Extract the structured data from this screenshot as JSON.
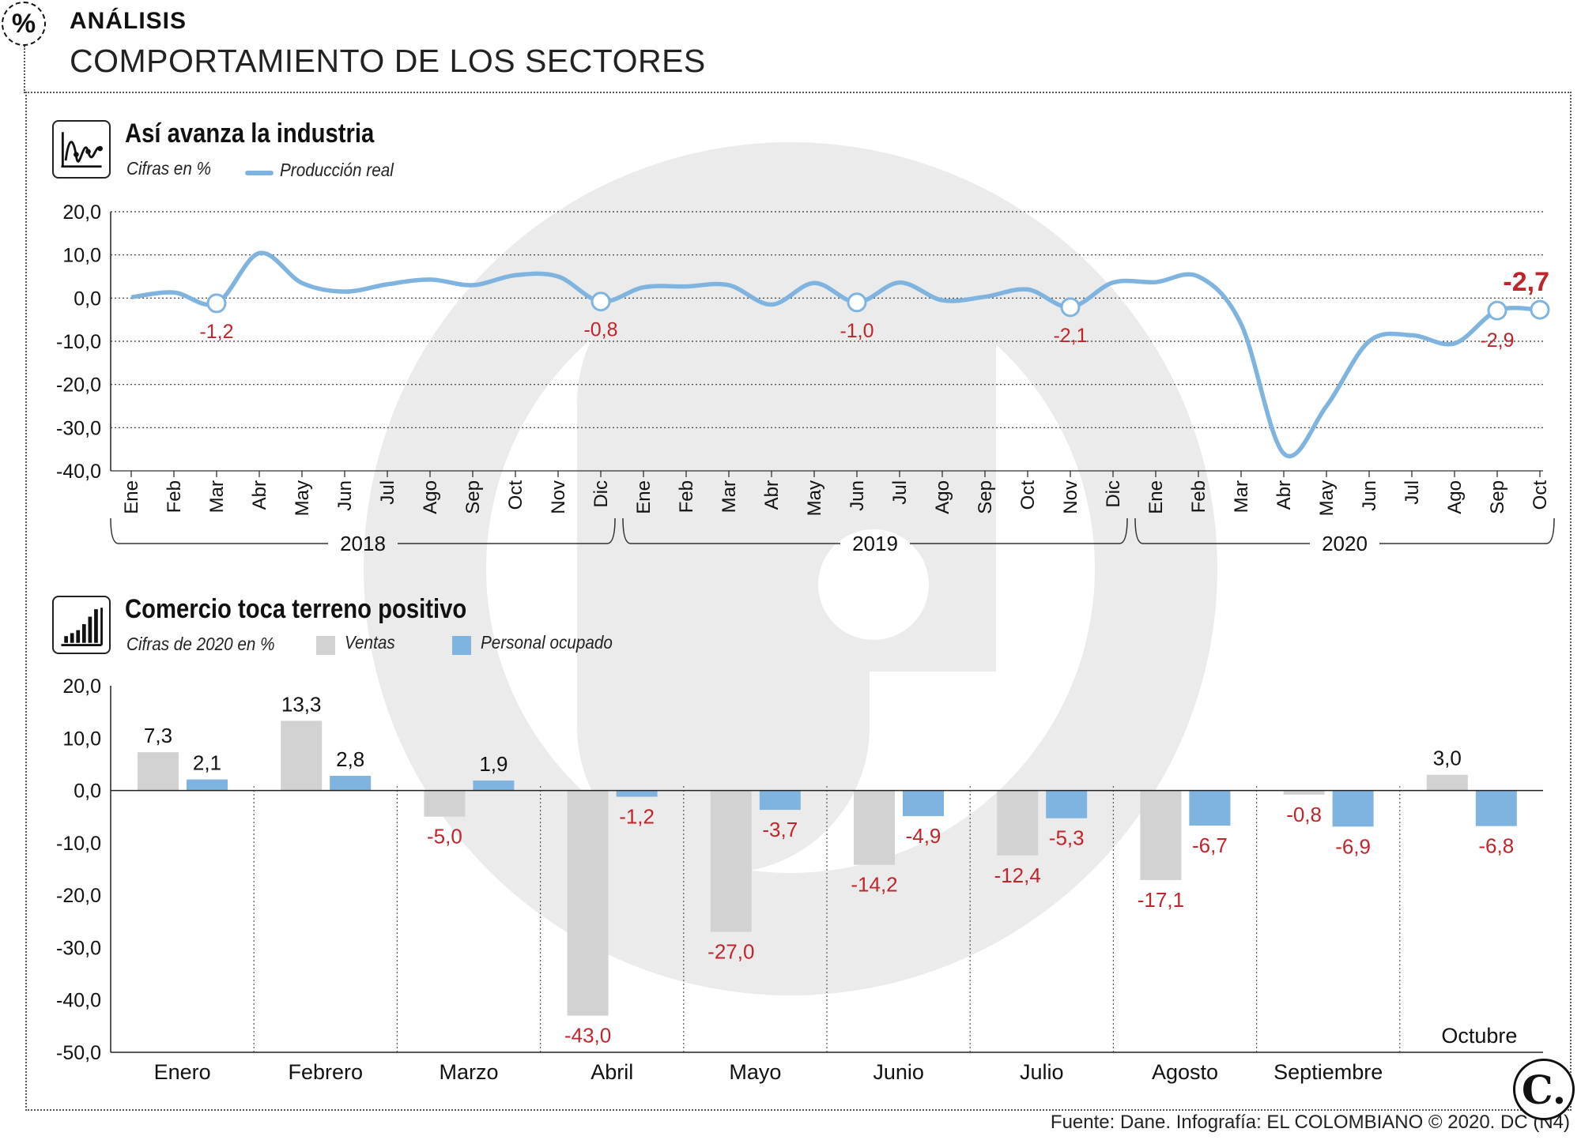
{
  "header": {
    "badge": "%",
    "kicker": "ANÁLISIS",
    "headline": "COMPORTAMIENTO DE LOS SECTORES"
  },
  "panel1": {
    "title": "Así avanza la industria",
    "subtitle": "Cifras en %",
    "legend": "Producción real",
    "icon": "line-chart-icon"
  },
  "panel2": {
    "title": "Comercio toca terreno positivo",
    "subtitle": "Cifras de 2020 en %",
    "legend_a": "Ventas",
    "legend_b": "Personal ocupado",
    "icon": "bar-chart-icon"
  },
  "source": "Fuente: Dane. Infografía: EL COLOMBIANO © 2020. DC (N4)",
  "brand_logo": "C.",
  "colors": {
    "line": "#7fb4e0",
    "bar_ventas": "#d2d2d2",
    "bar_personal": "#7fb4e0",
    "negative_label": "#c0252a",
    "watermark": "#ebebeb"
  },
  "chart_data": [
    {
      "type": "line",
      "title": "Así avanza la industria",
      "subtitle": "Cifras en %",
      "x_months": [
        "Ene",
        "Feb",
        "Mar",
        "Abr",
        "May",
        "Jun",
        "Jul",
        "Ago",
        "Sep",
        "Oct",
        "Nov",
        "Dic",
        "Ene",
        "Feb",
        "Mar",
        "Abr",
        "May",
        "Jun",
        "Jul",
        "Ago",
        "Sep",
        "Oct",
        "Nov",
        "Dic",
        "Ene",
        "Feb",
        "Mar",
        "Abr",
        "May",
        "Jun",
        "Jul",
        "Ago",
        "Sep",
        "Oct"
      ],
      "years": [
        {
          "label": "2018",
          "from": 0,
          "to": 11
        },
        {
          "label": "2019",
          "from": 12,
          "to": 23
        },
        {
          "label": "2020",
          "from": 24,
          "to": 33
        }
      ],
      "ylim": [
        -40,
        20
      ],
      "yticks": [
        20,
        10,
        0,
        -10,
        -20,
        -30,
        -40
      ],
      "ytick_labels": [
        "20,0",
        "10,0",
        "0,0",
        "-10,0",
        "-20,0",
        "-30,0",
        "-40,0"
      ],
      "grid": true,
      "series": [
        {
          "name": "Producción real",
          "values": [
            0.2,
            1.3,
            -1.2,
            10.4,
            3.5,
            1.5,
            3.2,
            4.3,
            3.0,
            5.3,
            5.0,
            -0.8,
            2.5,
            2.7,
            3.0,
            -1.5,
            3.5,
            -1.0,
            3.6,
            -0.5,
            0.3,
            2.0,
            -2.1,
            3.6,
            3.7,
            5.0,
            -6.0,
            -36.0,
            -25.0,
            -10.0,
            -8.6,
            -10.5,
            -2.9,
            -2.7
          ]
        }
      ],
      "annotations": [
        {
          "index": 2,
          "label": "-1,2"
        },
        {
          "index": 11,
          "label": "-0,8"
        },
        {
          "index": 17,
          "label": "-1,0"
        },
        {
          "index": 22,
          "label": "-2,1"
        },
        {
          "index": 32,
          "label": "-2,9"
        },
        {
          "index": 33,
          "label": "-2,7"
        }
      ]
    },
    {
      "type": "bar",
      "title": "Comercio toca terreno positivo",
      "subtitle": "Cifras de 2020 en %",
      "categories": [
        "Enero",
        "Febrero",
        "Marzo",
        "Abril",
        "Mayo",
        "Junio",
        "Julio",
        "Agosto",
        "Septiembre",
        "Octubre"
      ],
      "ylim": [
        -50,
        20
      ],
      "yticks": [
        20,
        10,
        0,
        -10,
        -20,
        -30,
        -40,
        -50
      ],
      "ytick_labels": [
        "20,0",
        "10,0",
        "0,0",
        "-10,0",
        "-20,0",
        "-30,0",
        "-40,0",
        "-50,0"
      ],
      "series": [
        {
          "name": "Ventas",
          "values": [
            7.3,
            13.3,
            -5.0,
            -43.0,
            -27.0,
            -14.2,
            -12.4,
            -17.1,
            -0.8,
            3.0
          ],
          "labels": [
            "7,3",
            "13,3",
            "-5,0",
            "-43,0",
            "-27,0",
            "-14,2",
            "-12,4",
            "-17,1",
            "-0,8",
            "3,0"
          ]
        },
        {
          "name": "Personal ocupado",
          "values": [
            2.1,
            2.8,
            1.9,
            -1.2,
            -3.7,
            -4.9,
            -5.3,
            -6.7,
            -6.9,
            -6.8
          ],
          "labels": [
            "2,1",
            "2,8",
            "1,9",
            "-1,2",
            "-3,7",
            "-4,9",
            "-5,3",
            "-6,7",
            "-6,9",
            "-6,8"
          ]
        }
      ]
    }
  ]
}
